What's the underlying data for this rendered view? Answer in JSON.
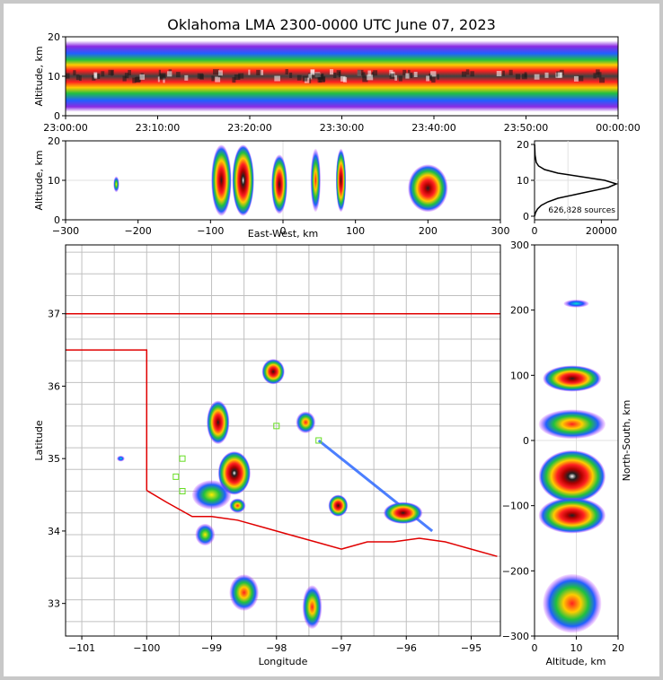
{
  "title": "Oklahoma LMA 2300-0000 UTC June 07, 2023",
  "colors": {
    "state_border": "#e00000",
    "county_lines": "#c0c0c0",
    "station_markers": "#66dd22"
  },
  "chart_data": [
    {
      "type": "heatmap",
      "name": "altitude-time",
      "ylabel": "Altitude, km",
      "xlim": [
        "23:00:00",
        "00:00:00"
      ],
      "ylim": [
        0,
        20
      ],
      "xticks": [
        "23:00:00",
        "23:10:00",
        "23:20:00",
        "23:30:00",
        "23:40:00",
        "23:50:00",
        "00:00:00"
      ],
      "yticks": [
        "0",
        "10",
        "20"
      ],
      "source_band_km": [
        1,
        19
      ],
      "peak_altitude_km": 10
    },
    {
      "type": "heatmap",
      "name": "east-west-altitude",
      "xlabel": "East-West, km",
      "ylabel": "Altitude, km",
      "xlim": [
        -300,
        300
      ],
      "ylim": [
        0,
        20
      ],
      "xticks": [
        "−300",
        "−200",
        "−100",
        "0",
        "100",
        "200",
        "300"
      ],
      "yticks": [
        "0",
        "10",
        "20"
      ],
      "cells": [
        {
          "x": -230,
          "y": 9,
          "w": 8,
          "h": 4,
          "level": 3
        },
        {
          "x": -85,
          "y": 10,
          "w": 28,
          "h": 18,
          "level": 5
        },
        {
          "x": -55,
          "y": 10,
          "w": 30,
          "h": 18,
          "level": 6
        },
        {
          "x": -5,
          "y": 9,
          "w": 22,
          "h": 15,
          "level": 5
        },
        {
          "x": 45,
          "y": 10,
          "w": 14,
          "h": 16,
          "level": 4
        },
        {
          "x": 80,
          "y": 10,
          "w": 14,
          "h": 16,
          "level": 5
        },
        {
          "x": 200,
          "y": 8,
          "w": 55,
          "h": 12,
          "level": 5
        }
      ]
    },
    {
      "type": "line",
      "name": "altitude-histogram",
      "annotation": "626,828 sources",
      "xlim": [
        0,
        25000
      ],
      "ylim": [
        0,
        20
      ],
      "xticks": [
        "0",
        "20000"
      ],
      "yticks": [
        "0",
        "10",
        "20"
      ],
      "x": [
        0,
        300,
        900,
        2000,
        4000,
        7000,
        12000,
        17000,
        22000,
        24500,
        21000,
        14000,
        7000,
        3000,
        1200,
        500,
        150,
        40
      ],
      "y": [
        0,
        1,
        2,
        3,
        4,
        5,
        6,
        7,
        8,
        9,
        10,
        11,
        12,
        13,
        14,
        15,
        17,
        20
      ]
    },
    {
      "type": "heatmap",
      "name": "plan-view-map",
      "xlabel": "Longitude",
      "ylabel": "Latitude",
      "xlim": [
        -101.25,
        -94.55
      ],
      "ylim": [
        32.55,
        37.95
      ],
      "xticks": [
        "−101",
        "−100",
        "−99",
        "−98",
        "−97",
        "−96",
        "−95"
      ],
      "yticks": [
        "33",
        "34",
        "35",
        "36",
        "37"
      ],
      "cells": [
        {
          "lon": -98.9,
          "lat": 35.5,
          "w": 0.35,
          "h": 0.6,
          "level": 5
        },
        {
          "lon": -98.65,
          "lat": 34.8,
          "w": 0.5,
          "h": 0.6,
          "level": 6
        },
        {
          "lon": -99.0,
          "lat": 34.5,
          "w": 0.6,
          "h": 0.4,
          "level": 3
        },
        {
          "lon": -98.05,
          "lat": 36.2,
          "w": 0.35,
          "h": 0.35,
          "level": 5
        },
        {
          "lon": -97.55,
          "lat": 35.5,
          "w": 0.3,
          "h": 0.3,
          "level": 4
        },
        {
          "lon": -97.05,
          "lat": 34.35,
          "w": 0.3,
          "h": 0.3,
          "level": 5
        },
        {
          "lon": -96.05,
          "lat": 34.25,
          "w": 0.6,
          "h": 0.3,
          "level": 5
        },
        {
          "lon": -98.5,
          "lat": 33.15,
          "w": 0.45,
          "h": 0.5,
          "level": 4
        },
        {
          "lon": -97.45,
          "lat": 32.95,
          "w": 0.3,
          "h": 0.6,
          "level": 4
        },
        {
          "lon": -98.6,
          "lat": 34.35,
          "w": 0.25,
          "h": 0.2,
          "level": 4
        },
        {
          "lon": -99.1,
          "lat": 33.95,
          "w": 0.3,
          "h": 0.3,
          "level": 3
        },
        {
          "lon": -100.4,
          "lat": 35.0,
          "w": 0.12,
          "h": 0.08,
          "level": 2
        }
      ]
    },
    {
      "type": "heatmap",
      "name": "altitude-north-south",
      "xlabel": "Altitude, km",
      "ylabel": "North-South, km",
      "xlim": [
        0,
        20
      ],
      "ylim": [
        -300,
        300
      ],
      "xticks": [
        "0",
        "10",
        "20"
      ],
      "yticks": [
        "300",
        "200",
        "100",
        "0",
        "−100",
        "−200",
        "−300"
      ],
      "cells": [
        {
          "x": 10,
          "y": 210,
          "w": 6,
          "h": 12,
          "level": 2
        },
        {
          "x": 9,
          "y": 95,
          "w": 14,
          "h": 40,
          "level": 5
        },
        {
          "x": 9,
          "y": 25,
          "w": 16,
          "h": 45,
          "level": 4
        },
        {
          "x": 9,
          "y": -55,
          "w": 16,
          "h": 80,
          "level": 6
        },
        {
          "x": 9,
          "y": -115,
          "w": 16,
          "h": 55,
          "level": 5
        },
        {
          "x": 9,
          "y": -250,
          "w": 14,
          "h": 90,
          "level": 4
        }
      ]
    }
  ]
}
